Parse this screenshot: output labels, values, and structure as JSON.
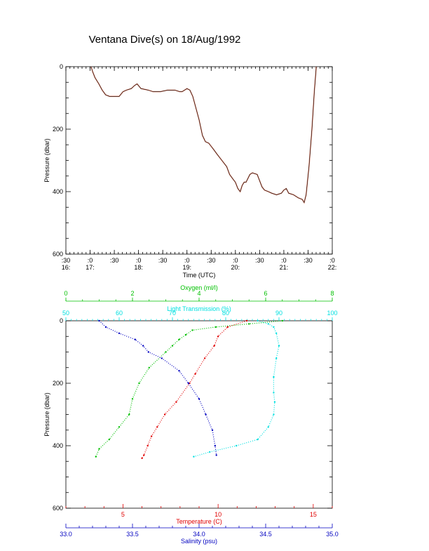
{
  "title": "Ventana Dive(s) on 18/Aug/1992",
  "colors": {
    "axis": "#000000",
    "oxygen": "#00c000",
    "transmission": "#00e0e0",
    "temperature": "#e00000",
    "salinity": "#0000c0",
    "track_line": "#000000",
    "track_points": "#e06040"
  },
  "chart_data": [
    {
      "type": "line",
      "title": "Ventana Dive(s) on 18/Aug/1992",
      "xlabel": "Time (UTC)",
      "ylabel": "Pressure (dbar)",
      "ylim": [
        600,
        0
      ],
      "y_ticks": [
        "0",
        "200",
        "400",
        "600"
      ],
      "x_tick_labels": [
        {
          "top": ":30",
          "bottom": "16:"
        },
        {
          "top": ":0",
          "bottom": "17:"
        },
        {
          "top": ":30",
          "bottom": ""
        },
        {
          "top": ":0",
          "bottom": "18:"
        },
        {
          "top": ":30",
          "bottom": ""
        },
        {
          "top": ":0",
          "bottom": "19:"
        },
        {
          "top": ":30",
          "bottom": ""
        },
        {
          "top": ":0",
          "bottom": "20:"
        },
        {
          "top": ":30",
          "bottom": ""
        },
        {
          "top": ":0",
          "bottom": "21:"
        },
        {
          "top": ":30",
          "bottom": ""
        },
        {
          "top": ":0",
          "bottom": "22:"
        }
      ],
      "x_hours_range": [
        16.5,
        22.0
      ],
      "series": [
        {
          "x_hours": [
            17.02,
            17.05,
            17.1,
            17.18,
            17.25,
            17.32,
            17.4,
            17.5,
            17.6,
            17.68,
            17.75,
            17.85,
            17.92,
            17.97,
            18.05,
            18.2,
            18.3,
            18.45,
            18.6,
            18.75,
            18.85,
            18.9,
            18.95,
            19.0,
            19.06,
            19.12,
            19.18,
            19.25,
            19.32,
            19.38,
            19.45,
            19.5,
            19.55,
            19.62,
            19.72,
            19.82,
            19.88,
            19.95,
            20.0,
            20.05,
            20.1,
            20.14,
            20.18,
            20.22,
            20.3,
            20.35,
            20.45,
            20.55,
            20.6,
            20.68,
            20.75,
            20.85,
            20.95,
            21.0,
            21.05,
            21.1,
            21.2,
            21.3,
            21.38,
            21.42,
            21.46,
            21.52,
            21.58,
            21.63,
            21.67
          ],
          "y": [
            0,
            15,
            35,
            55,
            75,
            90,
            95,
            95,
            95,
            80,
            75,
            70,
            60,
            55,
            70,
            75,
            80,
            80,
            75,
            75,
            80,
            80,
            75,
            70,
            75,
            95,
            130,
            170,
            220,
            240,
            245,
            255,
            265,
            280,
            300,
            320,
            345,
            360,
            370,
            390,
            400,
            380,
            370,
            370,
            345,
            340,
            345,
            385,
            395,
            400,
            405,
            410,
            405,
            395,
            390,
            405,
            410,
            420,
            425,
            435,
            410,
            320,
            200,
            80,
            0
          ]
        }
      ]
    },
    {
      "type": "scatter",
      "ylabel": "Pressure (dbar)",
      "ylim": [
        600,
        0
      ],
      "y_ticks": [
        "0",
        "200",
        "400",
        "600"
      ],
      "axes": {
        "oxygen": {
          "label": "Oxygen (ml/l)",
          "range": [
            0,
            8
          ],
          "ticks": [
            "0",
            "2",
            "4",
            "6",
            "8"
          ]
        },
        "transmission": {
          "label": "Light Transmission (%)",
          "range": [
            50,
            100
          ],
          "ticks": [
            "50",
            "60",
            "70",
            "80",
            "90",
            "100"
          ]
        },
        "temperature": {
          "label": "Temperature (C)",
          "range": [
            2,
            16
          ],
          "ticks": [
            "5",
            "10",
            "15"
          ]
        },
        "salinity": {
          "label": "Salinity (psu)",
          "range": [
            33.0,
            35.0
          ],
          "ticks": [
            "33.0",
            "33.5",
            "34.0",
            "34.5",
            "35.0"
          ]
        }
      },
      "series": [
        {
          "name": "Oxygen (ml/l)",
          "x": [
            6.5,
            5.5,
            4.5,
            3.8,
            3.6,
            3.4,
            3.2,
            3.0,
            2.5,
            2.2,
            2.0,
            1.9,
            1.6,
            1.3,
            1.0,
            0.9
          ],
          "y": [
            0,
            10,
            20,
            30,
            45,
            60,
            80,
            100,
            150,
            200,
            250,
            300,
            340,
            380,
            410,
            435
          ]
        },
        {
          "name": "Light Transmission (%)",
          "x": [
            86,
            88,
            89,
            89.5,
            90,
            89.5,
            89,
            89,
            89.2,
            89,
            88,
            86,
            82,
            77,
            74
          ],
          "y": [
            0,
            10,
            20,
            40,
            80,
            120,
            180,
            230,
            260,
            300,
            340,
            380,
            400,
            420,
            435
          ]
        },
        {
          "name": "Temperature (C)",
          "x": [
            11.5,
            10.5,
            10.0,
            9.8,
            9.3,
            8.8,
            8.5,
            7.8,
            7.2,
            6.8,
            6.5,
            6.3,
            6.1,
            6.0
          ],
          "y": [
            0,
            20,
            50,
            80,
            120,
            170,
            200,
            260,
            300,
            340,
            370,
            400,
            430,
            440
          ]
        },
        {
          "name": "Salinity (psu)",
          "x": [
            33.25,
            33.3,
            33.4,
            33.52,
            33.58,
            33.62,
            33.72,
            33.85,
            33.92,
            34.0,
            34.05,
            34.1,
            34.12,
            34.13
          ],
          "y": [
            0,
            20,
            40,
            60,
            80,
            100,
            120,
            160,
            200,
            250,
            300,
            350,
            400,
            430
          ]
        }
      ]
    }
  ]
}
